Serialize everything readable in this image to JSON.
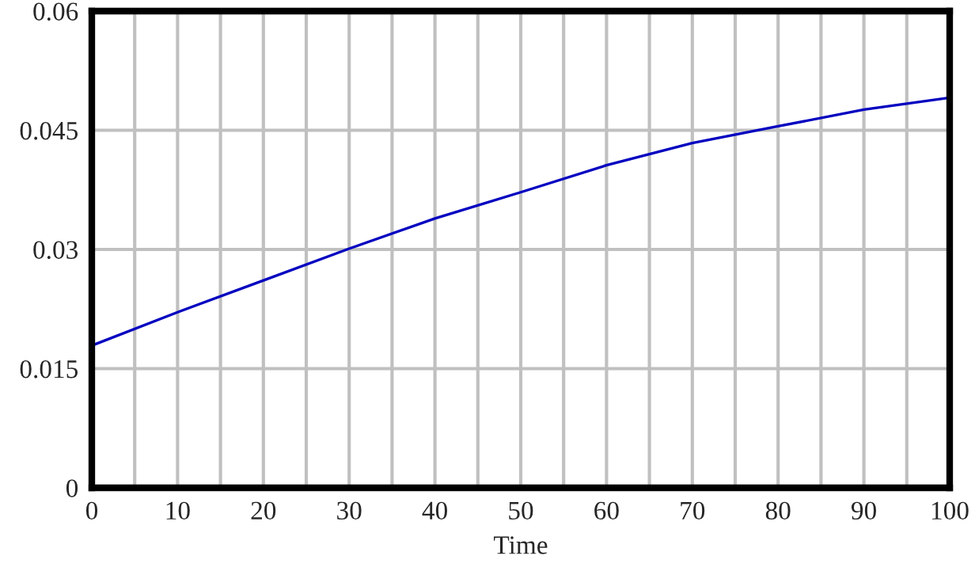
{
  "chart_data": {
    "type": "line",
    "xlabel": "Time",
    "x": [
      0,
      10,
      20,
      30,
      40,
      50,
      60,
      70,
      80,
      90,
      100
    ],
    "series": [
      {
        "color": "#0000c0",
        "values": [
          0.0179,
          0.0221,
          0.0261,
          0.0301,
          0.0339,
          0.0372,
          0.0406,
          0.0434,
          0.0455,
          0.0476,
          0.0491
        ]
      }
    ],
    "xlim": [
      0,
      100
    ],
    "xticks": [
      0,
      10,
      20,
      30,
      40,
      50,
      60,
      70,
      80,
      90,
      100
    ],
    "ylim": [
      0,
      0.06
    ],
    "yticks": [
      {
        "value": 0,
        "label": "0"
      },
      {
        "value": 0.015,
        "label": "0.015"
      },
      {
        "value": 0.03,
        "label": "0.03"
      },
      {
        "value": 0.045,
        "label": "0.045"
      },
      {
        "value": 0.06,
        "label": "0.06"
      }
    ],
    "grid": true,
    "marker": "none",
    "line_style": "solid"
  }
}
